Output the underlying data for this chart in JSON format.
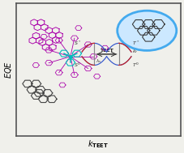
{
  "bg_color": "#f0f0eb",
  "border_color": "#555555",
  "xlabel": "k_TEET",
  "ylabel": "EQE",
  "blue_color": "#3355cc",
  "red_color": "#cc2222",
  "host_color": "#aa00aa",
  "cyan_color": "#00bbbb",
  "gray_color": "#444444",
  "ellipse_fill": "#cce8ff",
  "ellipse_edge": "#44aaee",
  "arrow_color": "#333333",
  "teet_label": "TEET",
  "tlx": 0.475,
  "tly": 0.7,
  "trx": 0.625,
  "try_": 0.7,
  "blx": 0.475,
  "bly": 0.535,
  "brx": 0.625,
  "bry": 0.535,
  "pw": 0.075,
  "ph": 0.065
}
